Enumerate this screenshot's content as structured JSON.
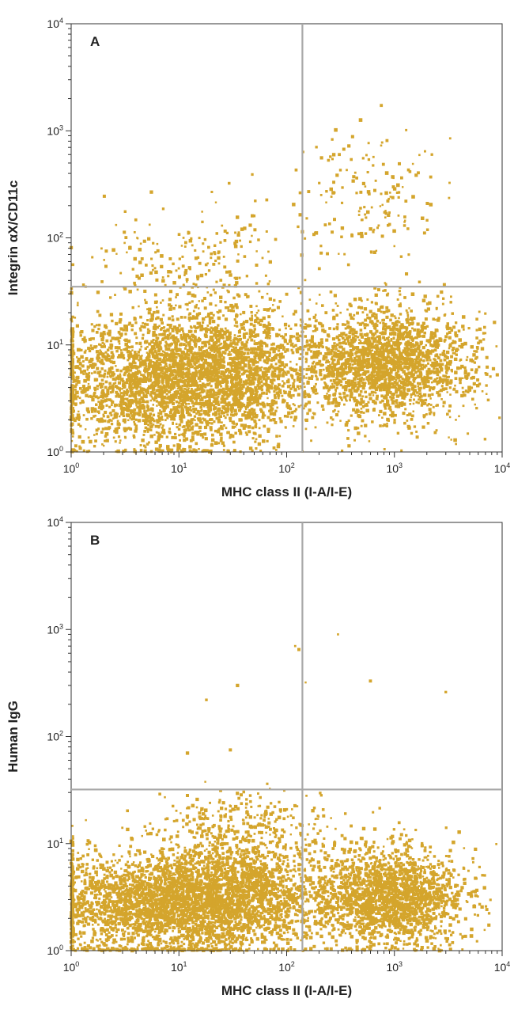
{
  "chart_data": [
    {
      "type": "scatter",
      "panel": "A",
      "xlabel": "MHC class II (I-A/I-E)",
      "ylabel": "Integrin αX/CD11c",
      "x_scale": "log",
      "y_scale": "log",
      "xlim": [
        1,
        10000
      ],
      "ylim": [
        1,
        10000
      ],
      "x_ticks": [
        1,
        10,
        100,
        1000,
        10000
      ],
      "y_ticks": [
        1,
        10,
        100,
        1000,
        10000
      ],
      "quadrant_gate": {
        "x": 140,
        "y": 35
      },
      "point_color": "#D4A52C",
      "populations": [
        {
          "center": [
            8,
            4.5
          ],
          "spread": [
            0.55,
            0.32
          ],
          "n": 2600
        },
        {
          "center": [
            35,
            6
          ],
          "spread": [
            0.4,
            0.3
          ],
          "n": 1200
        },
        {
          "center": [
            900,
            6.5
          ],
          "spread": [
            0.38,
            0.26
          ],
          "n": 2000
        },
        {
          "center": [
            15,
            60
          ],
          "spread": [
            0.5,
            0.25
          ],
          "n": 220
        },
        {
          "center": [
            600,
            230
          ],
          "spread": [
            0.32,
            0.28
          ],
          "n": 160
        }
      ]
    },
    {
      "type": "scatter",
      "panel": "B",
      "xlabel": "MHC class II (I-A/I-E)",
      "ylabel": "Human IgG",
      "x_scale": "log",
      "y_scale": "log",
      "xlim": [
        1,
        10000
      ],
      "ylim": [
        1,
        10000
      ],
      "x_ticks": [
        1,
        10,
        100,
        1000,
        10000
      ],
      "y_ticks": [
        1,
        10,
        100,
        1000,
        10000
      ],
      "quadrant_gate": {
        "x": 140,
        "y": 32
      },
      "point_color": "#D4A52C",
      "populations": [
        {
          "center": [
            8,
            2.8
          ],
          "spread": [
            0.55,
            0.25
          ],
          "n": 2800
        },
        {
          "center": [
            40,
            3.5
          ],
          "spread": [
            0.4,
            0.25
          ],
          "n": 1200
        },
        {
          "center": [
            900,
            3.2
          ],
          "spread": [
            0.36,
            0.22
          ],
          "n": 1900
        },
        {
          "center": [
            40,
            15
          ],
          "spread": [
            0.4,
            0.15
          ],
          "n": 250
        }
      ],
      "outliers": [
        [
          130,
          650
        ],
        [
          120,
          700
        ],
        [
          35,
          300
        ],
        [
          30,
          75
        ],
        [
          300,
          900
        ],
        [
          600,
          330
        ],
        [
          3000,
          260
        ],
        [
          150,
          320
        ],
        [
          18,
          220
        ],
        [
          12,
          70
        ]
      ]
    }
  ]
}
